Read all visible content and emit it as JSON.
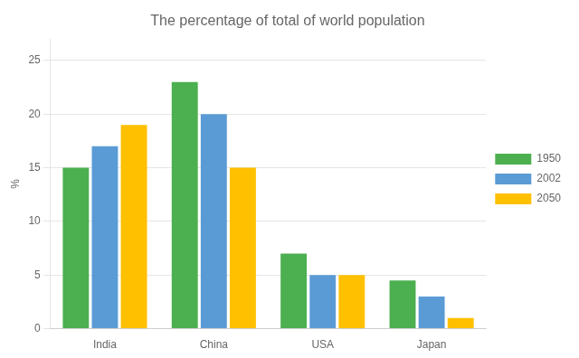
{
  "chart_data": {
    "type": "bar",
    "title": "The percentage of total of world population",
    "ylabel": "%",
    "categories": [
      "India",
      "China",
      "USA",
      "Japan"
    ],
    "series": [
      {
        "name": "1950",
        "color": "#4CAF50",
        "values": [
          15,
          23,
          7,
          4.5
        ]
      },
      {
        "name": "2002",
        "color": "#5B9BD5",
        "values": [
          17,
          20,
          5,
          3
        ]
      },
      {
        "name": "2050",
        "color": "#FFC000",
        "values": [
          19,
          15,
          5,
          1
        ]
      }
    ],
    "ylim": [
      0,
      27
    ],
    "yticks": [
      0,
      5,
      10,
      15,
      20,
      25
    ],
    "grid": true,
    "legend": "right"
  }
}
